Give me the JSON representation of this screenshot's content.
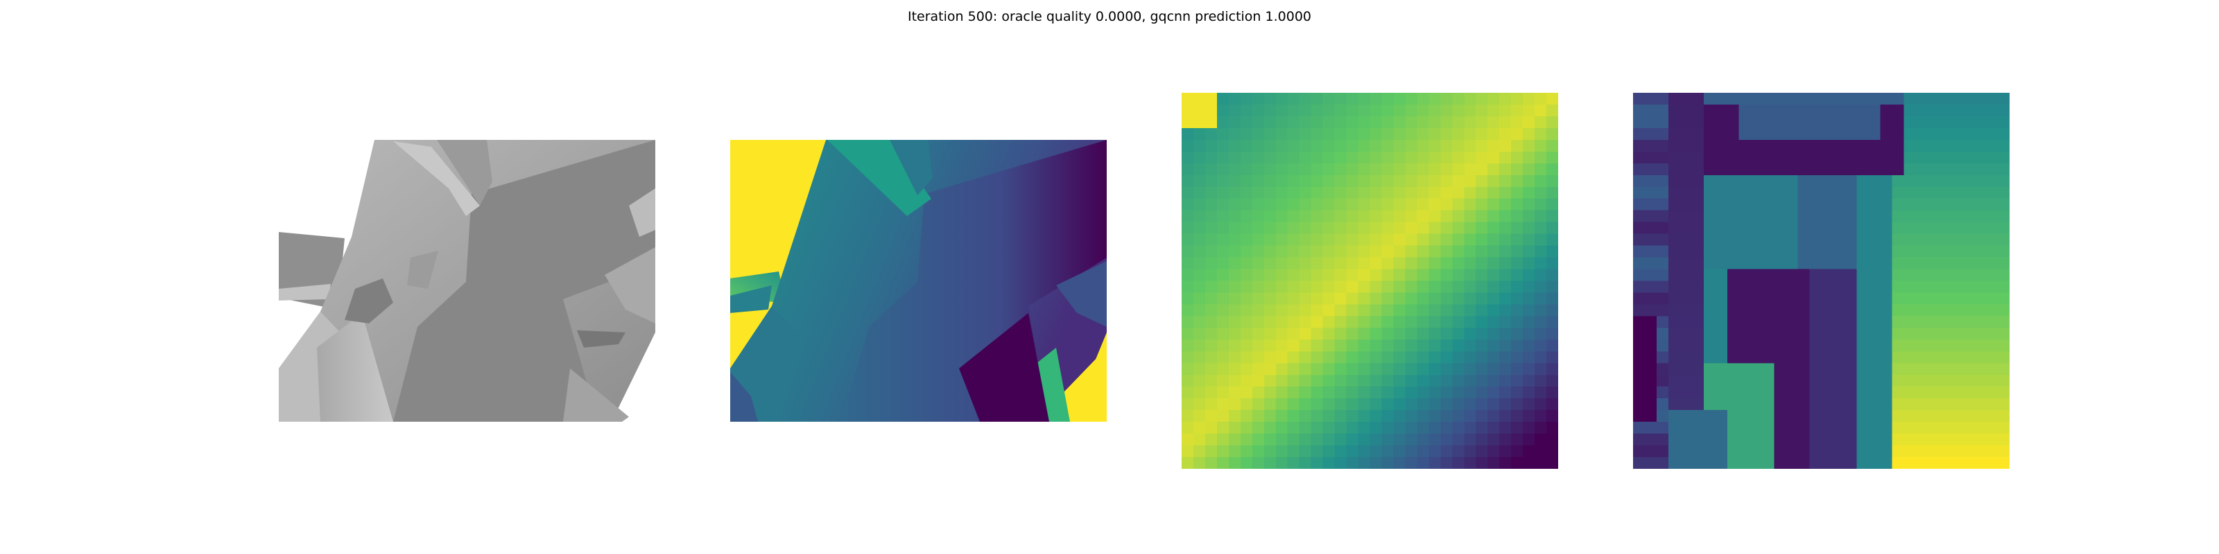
{
  "figure": {
    "title": "Iteration 500: oracle quality 0.0000, gqcnn prediction 1.0000"
  },
  "colormap": {
    "name": "viridis",
    "stops": [
      "#440154",
      "#3b528b",
      "#21918c",
      "#5ec962",
      "#fde725"
    ]
  },
  "panels": [
    {
      "id": "color-render",
      "kind": "grayscale-rendering"
    },
    {
      "id": "depth-image",
      "kind": "depth-map",
      "colormap": "viridis"
    },
    {
      "id": "depth-crop",
      "kind": "depth-crop",
      "colormap": "viridis"
    },
    {
      "id": "depth-crop-2",
      "kind": "depth-crop",
      "colormap": "viridis"
    }
  ]
}
